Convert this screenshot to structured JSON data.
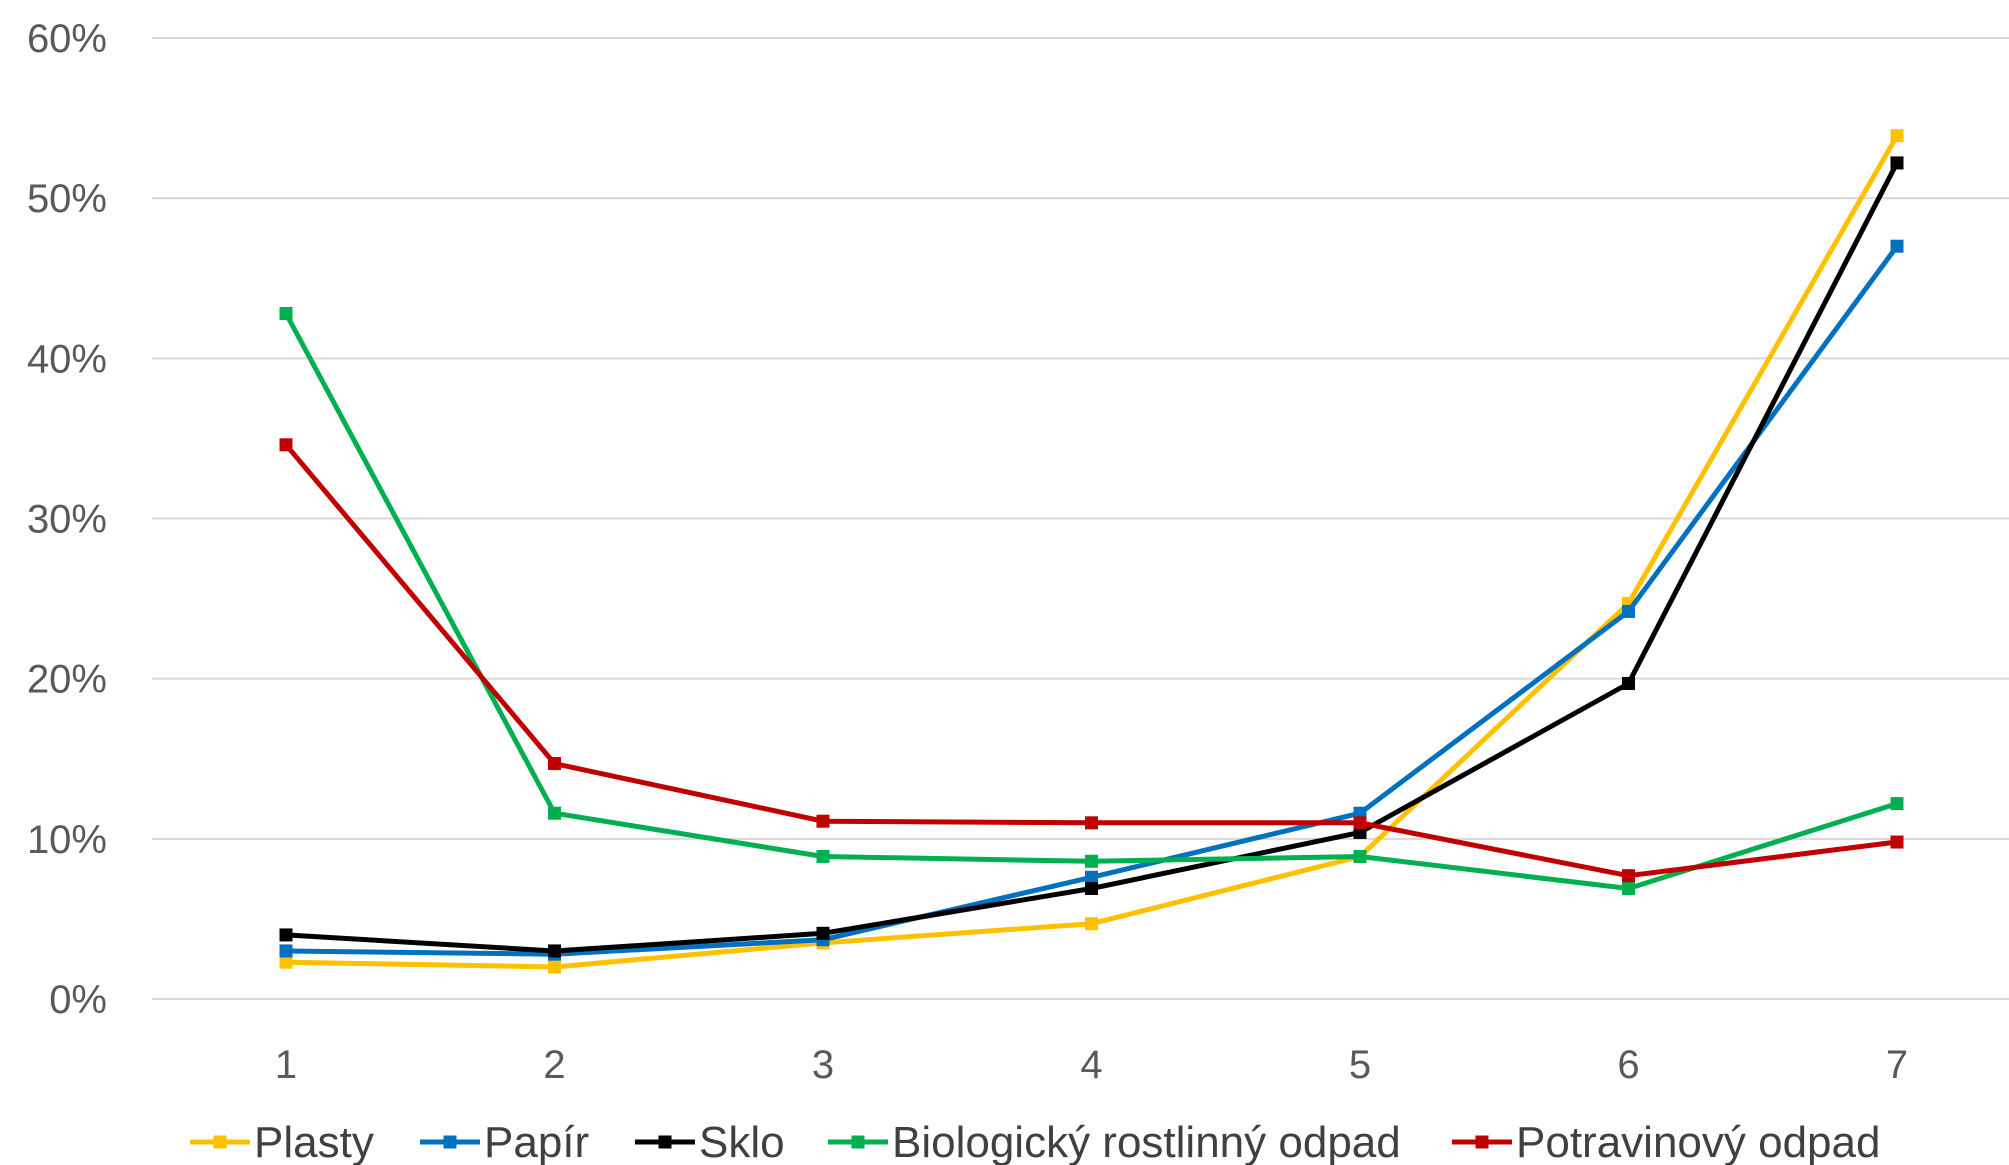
{
  "chart_data": {
    "type": "line",
    "title": "",
    "xlabel": "",
    "ylabel": "",
    "x": [
      1,
      2,
      3,
      4,
      5,
      6,
      7
    ],
    "x_tick_labels": [
      "1",
      "2",
      "3",
      "4",
      "5",
      "6",
      "7"
    ],
    "ylim": [
      0,
      0.6
    ],
    "y_ticks": [
      0,
      0.1,
      0.2,
      0.3,
      0.4,
      0.5,
      0.6
    ],
    "y_tick_labels": [
      "0%",
      "10%",
      "20%",
      "30%",
      "40%",
      "50%",
      "60%"
    ],
    "grid": true,
    "legend_position": "bottom",
    "marker": "square",
    "series": [
      {
        "name": "Plasty",
        "color": "#FFC000",
        "values": [
          0.023,
          0.02,
          0.035,
          0.047,
          0.089,
          0.247,
          0.539
        ]
      },
      {
        "name": "Papír",
        "color": "#0070C0",
        "values": [
          0.03,
          0.028,
          0.037,
          0.076,
          0.116,
          0.242,
          0.47
        ]
      },
      {
        "name": "Sklo",
        "color": "#000000",
        "values": [
          0.04,
          0.03,
          0.041,
          0.069,
          0.104,
          0.197,
          0.522
        ]
      },
      {
        "name": "Biologický rostlinný odpad",
        "color": "#00B050",
        "values": [
          0.428,
          0.116,
          0.089,
          0.086,
          0.089,
          0.069,
          0.122
        ]
      },
      {
        "name": "Potravinový odpad",
        "color": "#C00000",
        "values": [
          0.346,
          0.147,
          0.111,
          0.11,
          0.11,
          0.077,
          0.098
        ]
      }
    ]
  }
}
